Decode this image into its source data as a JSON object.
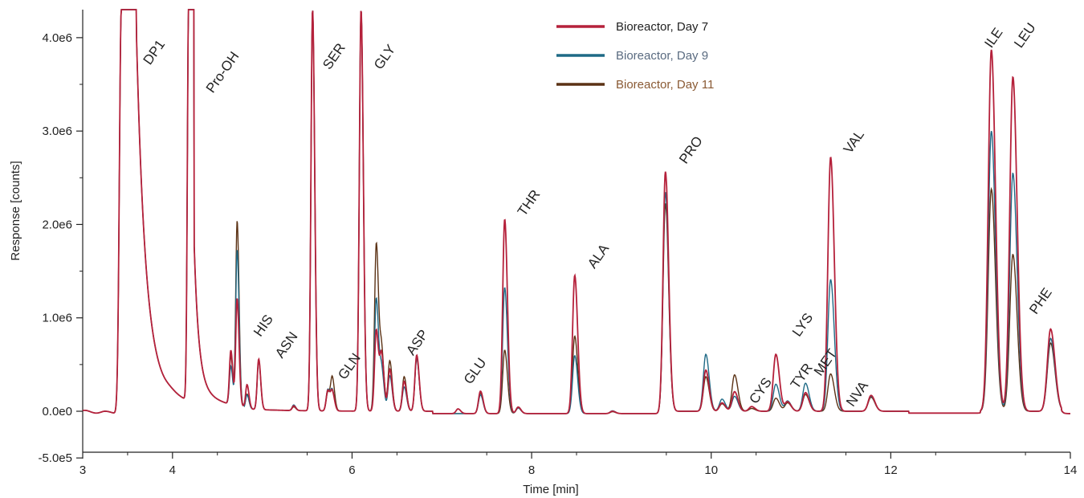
{
  "chart_data": {
    "type": "line",
    "xlabel": "Time [min]",
    "ylabel": "Response [counts]",
    "xlim": [
      3,
      14
    ],
    "ylim": [
      -750000,
      4300000
    ],
    "x_ticks": [
      3,
      4,
      6,
      8,
      10,
      12,
      14
    ],
    "x_tick_labels": [
      "3",
      "4",
      "6",
      "8",
      "10",
      "12",
      "14"
    ],
    "y_ticks": [
      -500000,
      0,
      1000000,
      2000000,
      3000000,
      4000000
    ],
    "y_tick_labels": [
      "-5.0e5",
      "0.0e0",
      "1.0e6",
      "2.0e6",
      "3.0e6",
      "4.0e6"
    ],
    "legend_position": "top-center",
    "grid": false,
    "series": [
      {
        "name": "Bioreactor, Day 7",
        "color": "#b5213b",
        "peaks": [
          [
            3.02,
            40000
          ],
          [
            3.25,
            30000
          ],
          [
            3.98,
            20000
          ],
          [
            4.65,
            580000
          ],
          [
            4.72,
            1150000
          ],
          [
            4.83,
            260000
          ],
          [
            4.96,
            540000
          ],
          [
            5.35,
            50000
          ],
          [
            5.56,
            4300000
          ],
          [
            5.73,
            220000
          ],
          [
            5.78,
            200000
          ],
          [
            6.1,
            4300000
          ],
          [
            6.27,
            870000
          ],
          [
            6.33,
            580000
          ],
          [
            6.42,
            450000
          ],
          [
            6.58,
            320000
          ],
          [
            6.72,
            600000
          ],
          [
            7.18,
            50000
          ],
          [
            7.43,
            240000
          ],
          [
            7.7,
            2080000
          ],
          [
            7.85,
            70000
          ],
          [
            8.48,
            1480000
          ],
          [
            8.9,
            25000
          ],
          [
            9.49,
            2590000
          ],
          [
            9.94,
            440000
          ],
          [
            10.12,
            90000
          ],
          [
            10.26,
            210000
          ],
          [
            10.45,
            50000
          ],
          [
            10.72,
            610000
          ],
          [
            10.85,
            100000
          ],
          [
            11.05,
            200000
          ],
          [
            11.33,
            2720000
          ],
          [
            11.78,
            170000
          ],
          [
            13.12,
            3870000
          ],
          [
            13.36,
            3580000
          ],
          [
            13.78,
            880000
          ]
        ]
      },
      {
        "name": "Bioreactor, Day 9",
        "color": "#1f6a86",
        "peaks": [
          [
            3.02,
            40000
          ],
          [
            3.25,
            30000
          ],
          [
            3.98,
            20000
          ],
          [
            4.65,
            410000
          ],
          [
            4.72,
            1670000
          ],
          [
            4.83,
            150000
          ],
          [
            4.96,
            520000
          ],
          [
            5.35,
            60000
          ],
          [
            5.56,
            4300000
          ],
          [
            5.73,
            230000
          ],
          [
            5.78,
            210000
          ],
          [
            6.1,
            4300000
          ],
          [
            6.27,
            1210000
          ],
          [
            6.33,
            430000
          ],
          [
            6.42,
            380000
          ],
          [
            6.58,
            260000
          ],
          [
            6.72,
            560000
          ],
          [
            7.43,
            200000
          ],
          [
            7.7,
            1350000
          ],
          [
            7.85,
            60000
          ],
          [
            8.48,
            620000
          ],
          [
            8.9,
            30000
          ],
          [
            9.49,
            2370000
          ],
          [
            9.94,
            610000
          ],
          [
            10.12,
            130000
          ],
          [
            10.26,
            160000
          ],
          [
            10.45,
            50000
          ],
          [
            10.72,
            290000
          ],
          [
            10.85,
            110000
          ],
          [
            11.05,
            300000
          ],
          [
            11.33,
            1410000
          ],
          [
            11.78,
            160000
          ],
          [
            13.12,
            3000000
          ],
          [
            13.36,
            2550000
          ],
          [
            13.78,
            780000
          ]
        ]
      },
      {
        "name": "Bioreactor, Day 11",
        "color": "#5b3215",
        "peaks": [
          [
            3.02,
            40000
          ],
          [
            3.25,
            30000
          ],
          [
            3.98,
            20000
          ],
          [
            4.65,
            520000
          ],
          [
            4.72,
            1980000
          ],
          [
            4.83,
            160000
          ],
          [
            4.96,
            530000
          ],
          [
            5.35,
            40000
          ],
          [
            5.56,
            4300000
          ],
          [
            5.73,
            200000
          ],
          [
            5.78,
            350000
          ],
          [
            6.1,
            4300000
          ],
          [
            6.27,
            1800000
          ],
          [
            6.33,
            620000
          ],
          [
            6.42,
            540000
          ],
          [
            6.58,
            370000
          ],
          [
            6.72,
            580000
          ],
          [
            7.43,
            220000
          ],
          [
            7.7,
            680000
          ],
          [
            7.85,
            60000
          ],
          [
            8.48,
            830000
          ],
          [
            8.9,
            20000
          ],
          [
            9.49,
            2250000
          ],
          [
            9.94,
            370000
          ],
          [
            10.12,
            80000
          ],
          [
            10.26,
            390000
          ],
          [
            10.45,
            30000
          ],
          [
            10.72,
            140000
          ],
          [
            10.85,
            90000
          ],
          [
            11.05,
            180000
          ],
          [
            11.33,
            400000
          ],
          [
            11.78,
            150000
          ],
          [
            13.12,
            2380000
          ],
          [
            13.36,
            1680000
          ],
          [
            13.78,
            730000
          ]
        ]
      }
    ],
    "peak_labels": [
      {
        "text": "DP1",
        "x": 3.75,
        "y": 3700000
      },
      {
        "text": "Pro-OH",
        "x": 4.45,
        "y": 3400000
      },
      {
        "text": "HIS",
        "x": 4.98,
        "y": 790000
      },
      {
        "text": "ASN",
        "x": 5.22,
        "y": 560000
      },
      {
        "text": "SER",
        "x": 5.75,
        "y": 3650000
      },
      {
        "text": "GLN",
        "x": 5.92,
        "y": 330000
      },
      {
        "text": "GLY",
        "x": 6.32,
        "y": 3650000
      },
      {
        "text": "ASP",
        "x": 6.68,
        "y": 590000
      },
      {
        "text": "GLU",
        "x": 7.32,
        "y": 280000
      },
      {
        "text": "THR",
        "x": 7.92,
        "y": 2080000
      },
      {
        "text": "ALA",
        "x": 8.7,
        "y": 1520000
      },
      {
        "text": "PRO",
        "x": 9.72,
        "y": 2640000
      },
      {
        "text": "CYS",
        "x": 10.5,
        "y": 70000
      },
      {
        "text": "LYS",
        "x": 10.98,
        "y": 790000
      },
      {
        "text": "TYR",
        "x": 10.96,
        "y": 230000
      },
      {
        "text": "MET",
        "x": 11.22,
        "y": 370000
      },
      {
        "text": "VAL",
        "x": 11.55,
        "y": 2750000
      },
      {
        "text": "NVA",
        "x": 11.58,
        "y": 40000
      },
      {
        "text": "ILE",
        "x": 13.12,
        "y": 3880000
      },
      {
        "text": "LEU",
        "x": 13.45,
        "y": 3880000
      },
      {
        "text": "PHE",
        "x": 13.62,
        "y": 1030000
      }
    ]
  }
}
